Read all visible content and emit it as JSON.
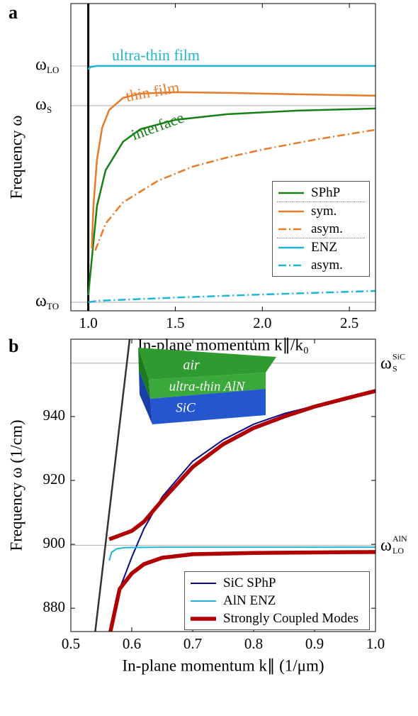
{
  "chart_data": [
    {
      "type": "line",
      "label": "a",
      "xlabel": "In-plane momentum k∥/k₀",
      "ylabel": "Frequency ω",
      "xlim": [
        0.9,
        2.65
      ],
      "ylim": [
        -0.036,
        1.264
      ],
      "xticks": [
        {
          "value": 1,
          "label": "1.0"
        },
        1.5,
        {
          "value": 2,
          "label": "2.0"
        },
        2.5
      ],
      "yticks": [
        {
          "value": 0,
          "label": "ω",
          "subscript": "TO"
        },
        {
          "value": 0.832,
          "label": "ω",
          "subscript": "S"
        },
        {
          "value": 1,
          "label": "ω",
          "subscript": "LO"
        }
      ],
      "grid": true,
      "legend": "lower right",
      "annotations": [
        {
          "text": "ultra-thin film",
          "color": "#1fb5d6"
        },
        {
          "text": "thin film",
          "color": "#e87b2a"
        },
        {
          "text": "interface",
          "color": "#178017"
        }
      ],
      "series": [
        {
          "color": "#000000",
          "style": "solid",
          "width": 3,
          "x": [
            1.0,
            1.0
          ],
          "values": [
            -0.036,
            1.264
          ]
        },
        {
          "name": "SPhP",
          "color": "#178017",
          "style": "solid",
          "width": 2.5,
          "x": [
            1.0,
            1.05,
            1.1,
            1.2,
            1.3,
            1.5,
            1.8,
            2.2,
            2.65
          ],
          "values": [
            0.03,
            0.408,
            0.559,
            0.679,
            0.733,
            0.772,
            0.796,
            0.811,
            0.82
          ]
        },
        {
          "name": "sym.",
          "color": "#e87b2a",
          "style": "solid",
          "width": 2.5,
          "separator_before": true,
          "x": [
            1.02,
            1.03,
            1.05,
            1.08,
            1.12,
            1.2,
            1.3,
            1.5,
            1.8,
            2.2,
            2.65
          ],
          "values": [
            0.228,
            0.408,
            0.604,
            0.739,
            0.814,
            0.865,
            0.883,
            0.889,
            0.886,
            0.88,
            0.874
          ]
        },
        {
          "name": "asym.",
          "color": "#e87b2a",
          "style": "dashdot",
          "width": 2.5,
          "x": [
            1.04,
            1.1,
            1.2,
            1.4,
            1.6,
            1.8,
            2.0,
            2.3,
            2.65
          ],
          "values": [
            0.219,
            0.333,
            0.423,
            0.514,
            0.574,
            0.613,
            0.646,
            0.688,
            0.73
          ]
        },
        {
          "name": "ENZ",
          "color": "#1fb5d6",
          "style": "solid",
          "width": 2.5,
          "separator_before": true,
          "x": [
            1.0,
            1.01,
            1.05,
            2.65
          ],
          "values": [
            0.985,
            0.995,
            1.0,
            1.0
          ]
        },
        {
          "name": "asym.",
          "color": "#1fb5d6",
          "style": "dashdot",
          "width": 2.5,
          "x": [
            1.0,
            1.05,
            1.5,
            2.0,
            2.65
          ],
          "values": [
            0,
            0.006,
            0.02,
            0.033,
            0.048
          ]
        }
      ]
    },
    {
      "type": "line",
      "label": "b",
      "xlabel": "In-plane momentum k∥ (1/μm)",
      "ylabel": "Frequency ω (1/cm)",
      "xlim": [
        0.5,
        1.0
      ],
      "ylim": [
        872.7,
        964.2
      ],
      "xticks": [
        0.5,
        0.6,
        0.7,
        0.8,
        0.9,
        {
          "value": 1,
          "label": "1.0"
        }
      ],
      "yticks": [
        880,
        900,
        920,
        940
      ],
      "grid": false,
      "legend": "lower right",
      "reference_lines": [
        {
          "value": 956.7,
          "label": "ω",
          "subscript": "S",
          "superscript": "SiC"
        },
        {
          "value": 899.7,
          "label": "ω",
          "subscript": "LO",
          "superscript": "AlN"
        }
      ],
      "inset_labels": [
        "air",
        "ultra-thin AlN",
        "SiC"
      ],
      "series": [
        {
          "color": "#333333",
          "style": "solid",
          "width": 2.5,
          "x": [
            0.54,
            0.5965
          ],
          "values": [
            872.7,
            964.2
          ]
        },
        {
          "name": "SiC SPhP",
          "color": "#0b0b8a",
          "style": "solid",
          "width": 2,
          "x": [
            0.565,
            0.58,
            0.6,
            0.62,
            0.65,
            0.7,
            0.75,
            0.8,
            0.85,
            0.9,
            0.95,
            1.0
          ],
          "values": [
            872.7,
            886,
            896,
            904.9,
            914.9,
            926,
            932.7,
            937.6,
            940.9,
            943.3,
            945.6,
            947.6
          ]
        },
        {
          "name": "AlN ENZ",
          "color": "#1fb5d6",
          "style": "solid",
          "width": 2,
          "x": [
            0.563,
            0.567,
            0.575,
            0.59,
            0.65,
            1.0
          ],
          "values": [
            894.9,
            897.5,
            898.6,
            899.0,
            899.1,
            899.1
          ]
        },
        {
          "name": "Strongly Coupled Modes",
          "color": "#b00000",
          "style": "solid",
          "width": 5.5,
          "x": [
            0.563,
            0.6,
            0.62,
            0.65,
            0.7,
            0.75,
            0.8,
            0.85,
            0.9,
            0.95,
            1.0,
            null,
            0.565,
            0.58,
            0.6,
            0.62,
            0.65,
            0.7,
            0.8,
            1.0
          ],
          "values": [
            901.6,
            904.2,
            907.1,
            913.8,
            924.2,
            931.3,
            936.4,
            940,
            943.1,
            945.6,
            948,
            null,
            872.7,
            886,
            890.9,
            893.8,
            895.8,
            896.9,
            897.3,
            897.6
          ]
        }
      ]
    }
  ]
}
